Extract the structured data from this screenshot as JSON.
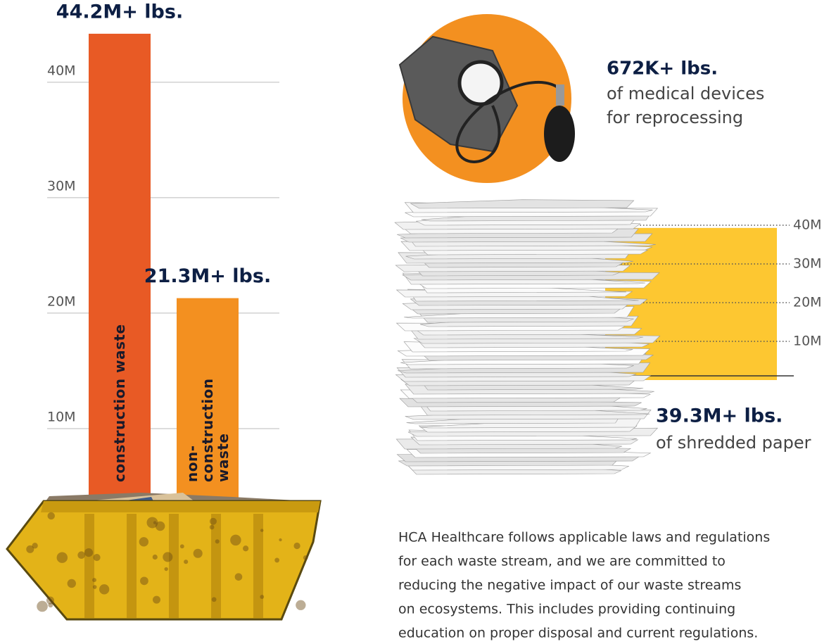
{
  "chart_data": [
    {
      "type": "bar",
      "categories": [
        "construction waste",
        "non-construction waste"
      ],
      "values": [
        44.2,
        21.3
      ],
      "value_labels": [
        "44.2M+ lbs.",
        "21.3M+ lbs."
      ],
      "colors": [
        "#e85a25",
        "#f39020"
      ],
      "ylim": [
        0,
        47
      ],
      "yticks": [
        {
          "value": 10,
          "label": "10M"
        },
        {
          "value": 20,
          "label": "20M"
        },
        {
          "value": 30,
          "label": "30M"
        },
        {
          "value": 40,
          "label": "40M"
        }
      ],
      "grid": true
    },
    {
      "type": "bar",
      "categories": [
        null
      ],
      "values": [
        39.3
      ],
      "value_labels": [
        "39.3M+ lbs."
      ],
      "subtitle": "of shredded paper",
      "colors": [
        "#fdc731"
      ],
      "ylim": [
        0,
        42
      ],
      "yticks": [
        {
          "value": 10,
          "label": "10M"
        },
        {
          "value": 20,
          "label": "20M"
        },
        {
          "value": 30,
          "label": "30M"
        },
        {
          "value": 40,
          "label": "40M"
        }
      ],
      "grid": true
    }
  ],
  "medical": {
    "figure": "672K+ lbs.",
    "caption": [
      "of medical devices",
      "for reprocessing"
    ]
  },
  "paragraph": [
    "HCA Healthcare follows applicable laws and regulations",
    "for each waste stream, and we are committed to",
    "reducing the negative impact of our waste streams",
    "on ecosystems. This includes providing continuing",
    "education on proper disposal and current regulations."
  ]
}
